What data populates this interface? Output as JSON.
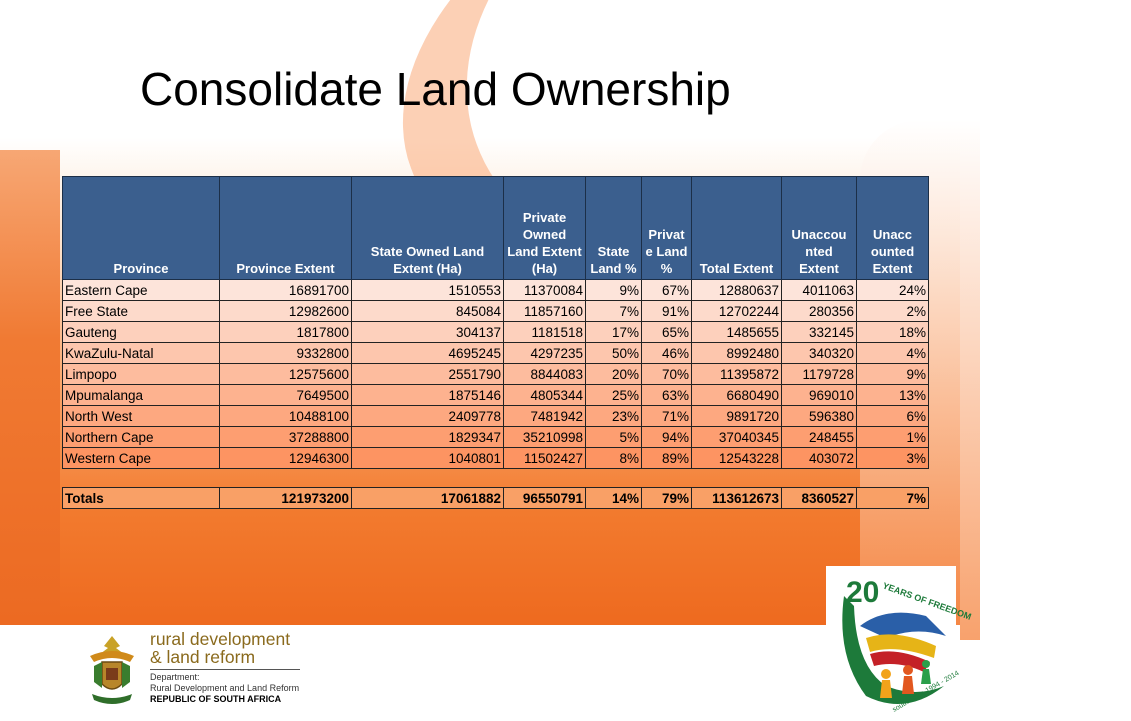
{
  "title": "Consolidate Land Ownership",
  "table": {
    "headers": [
      "Province",
      "Province Extent",
      "State Owned Land Extent (Ha)",
      "Private Owned Land Extent (Ha)",
      "State Land %",
      "Privat e Land %",
      "Total Extent",
      "Unaccou nted Extent",
      "Unacc ounted Extent"
    ],
    "rows": [
      [
        "Eastern Cape",
        "16891700",
        "1510553",
        "11370084",
        "9%",
        "67%",
        "12880637",
        "4011063",
        "24%"
      ],
      [
        "Free State",
        "12982600",
        "845084",
        "11857160",
        "7%",
        "91%",
        "12702244",
        "280356",
        "2%"
      ],
      [
        "Gauteng",
        "1817800",
        "304137",
        "1181518",
        "17%",
        "65%",
        "1485655",
        "332145",
        "18%"
      ],
      [
        "KwaZulu-Natal",
        "9332800",
        "4695245",
        "4297235",
        "50%",
        "46%",
        "8992480",
        "340320",
        "4%"
      ],
      [
        "Limpopo",
        "12575600",
        "2551790",
        "8844083",
        "20%",
        "70%",
        "11395872",
        "1179728",
        "9%"
      ],
      [
        "Mpumalanga",
        "7649500",
        "1875146",
        "4805344",
        "25%",
        "63%",
        "6680490",
        "969010",
        "13%"
      ],
      [
        "North West",
        "10488100",
        "2409778",
        "7481942",
        "23%",
        "71%",
        "9891720",
        "596380",
        "6%"
      ],
      [
        "Northern Cape",
        "37288800",
        "1829347",
        "35210998",
        "5%",
        "94%",
        "37040345",
        "248455",
        "1%"
      ],
      [
        "Western Cape",
        "12946300",
        "1040801",
        "11502427",
        "8%",
        "89%",
        "12543228",
        "403072",
        "3%"
      ]
    ],
    "totals": [
      "Totals",
      "121973200",
      "17061882",
      "96550791",
      "14%",
      "79%",
      "113612673",
      "8360527",
      "7%"
    ]
  },
  "footer": {
    "dept_line1": "rural development",
    "dept_line2": "& land reform",
    "dept_label": "Department:",
    "dept_full": "Rural Development and Land Reform",
    "country": "REPUBLIC OF SOUTH AFRICA"
  },
  "badge": {
    "number": "20",
    "text": "YEARS OF FREEDOM",
    "subtext": "south africa 1994 - 2014"
  },
  "colors": {
    "header_blue": "#3b5f8e",
    "orange": "#f27a2e",
    "dept_gold": "#8a6a1d",
    "badge_green": "#1d7a3a"
  }
}
